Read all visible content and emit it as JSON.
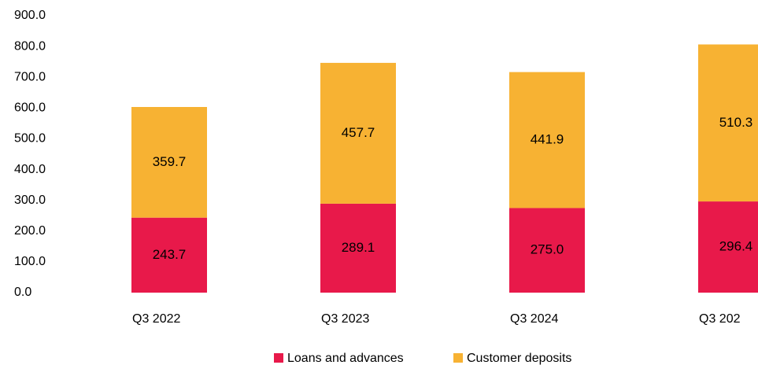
{
  "chart_data": {
    "type": "bar",
    "stacked": true,
    "categories": [
      "Q3 2022",
      "Q3 2023",
      "Q3 2024",
      "Q3 202"
    ],
    "series": [
      {
        "name": "Loans and advances",
        "color": "#e8194a",
        "values": [
          243.7,
          289.1,
          275.0,
          296.4
        ],
        "value_labels": [
          "243.7",
          "289.1",
          "275.0",
          "296.4"
        ]
      },
      {
        "name": "Customer deposits",
        "color": "#f7b233",
        "values": [
          359.7,
          457.7,
          441.9,
          510.3
        ],
        "value_labels": [
          "359.7",
          "457.7",
          "441.9",
          "510.3"
        ]
      }
    ],
    "ylim": [
      0,
      900
    ],
    "yticks": [
      {
        "value": 0,
        "label": "0.0"
      },
      {
        "value": 100,
        "label": "100.0"
      },
      {
        "value": 200,
        "label": "200.0"
      },
      {
        "value": 300,
        "label": "300.0"
      },
      {
        "value": 400,
        "label": "400.0"
      },
      {
        "value": 500,
        "label": "500.0"
      },
      {
        "value": 600,
        "label": "600.0"
      },
      {
        "value": 700,
        "label": "700.0"
      },
      {
        "value": 800,
        "label": "800.0"
      },
      {
        "value": 900,
        "label": "900.0"
      }
    ],
    "grid": false,
    "legend": "bottom"
  }
}
